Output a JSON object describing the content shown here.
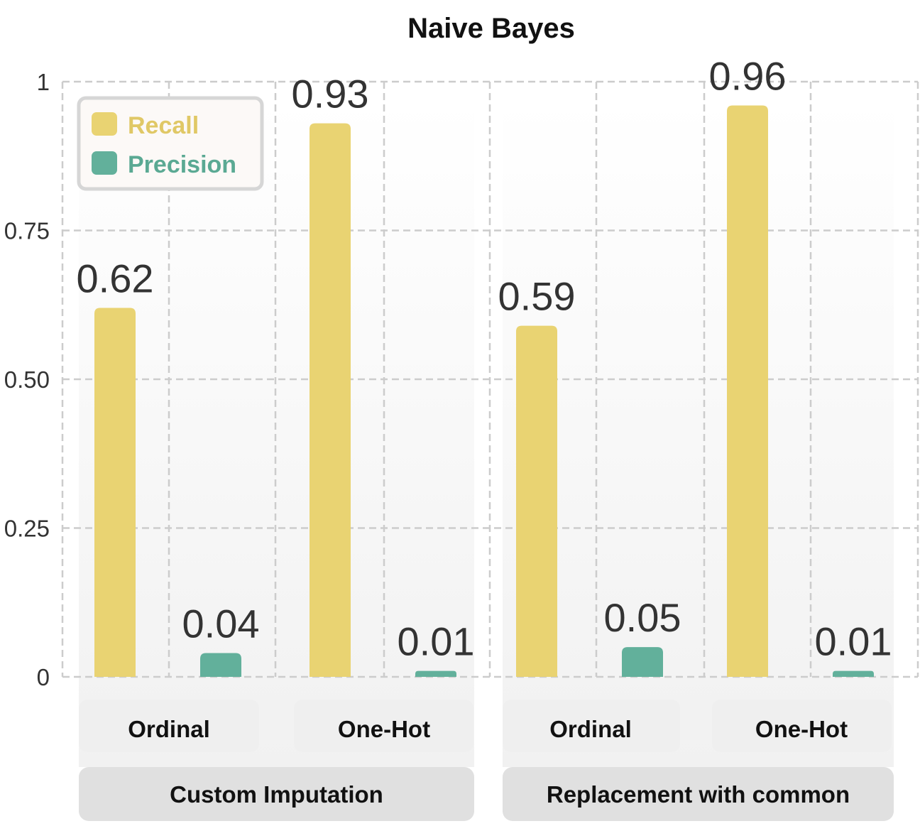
{
  "chart_data": {
    "type": "bar",
    "title": "Naive Bayes",
    "groups": [
      {
        "label": "Custom Imputation",
        "subcategories": [
          "Ordinal",
          "One-Hot"
        ]
      },
      {
        "label": "Replacement with common",
        "subcategories": [
          "Ordinal",
          "One-Hot"
        ]
      }
    ],
    "categories": [
      "Ordinal",
      "One-Hot",
      "Ordinal",
      "One-Hot"
    ],
    "series": [
      {
        "name": "Recall",
        "color": "#E9D372",
        "values": [
          0.62,
          0.93,
          0.59,
          0.96
        ],
        "labels": [
          "0.62",
          "0.93",
          "0.59",
          "0.96"
        ]
      },
      {
        "name": "Precision",
        "color": "#62B09B",
        "values": [
          0.04,
          0.01,
          0.05,
          0.01
        ],
        "labels": [
          "0.04",
          "0.01",
          "0.05",
          "0.01"
        ]
      }
    ],
    "yticks": [
      {
        "value": 0,
        "label": "0"
      },
      {
        "value": 0.25,
        "label": "0.25"
      },
      {
        "value": 0.5,
        "label": "0.50"
      },
      {
        "value": 0.75,
        "label": "0.75"
      },
      {
        "value": 1,
        "label": "1"
      }
    ],
    "ylim": [
      0,
      1
    ],
    "xlabel": "",
    "ylabel": "",
    "legend_position": "top-left",
    "grid": true,
    "grid_style": "dashed"
  }
}
